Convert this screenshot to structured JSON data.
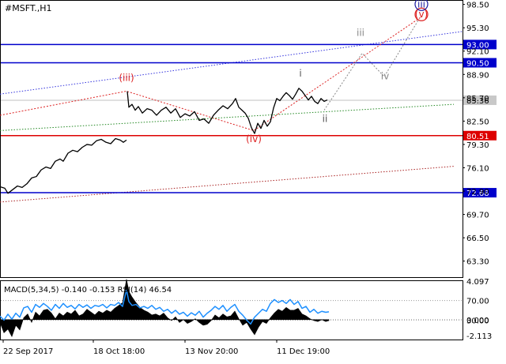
{
  "symbol_label": "#MSFT.,H1",
  "indicator_label": "MACD(5,34,5) -0.140 -0.153 RSI(14) 46.54",
  "chart_data": [
    {
      "type": "line",
      "panel": "price",
      "ylim": [
        61.1,
        99.0
      ],
      "x_range": [
        0,
        574
      ],
      "y_ticks": [
        "98.50",
        "95.30",
        "92.10",
        "88.90",
        "85.70",
        "82.50",
        "79.30",
        "76.10",
        "72.90",
        "69.70",
        "66.50",
        "63.30"
      ],
      "price_labels": [
        {
          "text": "93.00",
          "value": 93.0,
          "color": "#0000cc",
          "style": "line",
          "kind": "level"
        },
        {
          "text": "90.50",
          "value": 90.5,
          "color": "#0000cc",
          "style": "line",
          "kind": "level"
        },
        {
          "text": "85.36",
          "value": 85.36,
          "color": "#c0c0c0",
          "style": "line",
          "kind": "current"
        },
        {
          "text": "80.51",
          "value": 80.51,
          "color": "#dd0000",
          "style": "line",
          "kind": "level"
        },
        {
          "text": "72.68",
          "value": 72.68,
          "color": "#0000cc",
          "style": "line",
          "kind": "level"
        }
      ],
      "x_labels": [
        {
          "text": "22 Sep 2017",
          "x": 4
        },
        {
          "text": "18 Oct 18:00",
          "x": 118
        },
        {
          "text": "13 Nov 20:00",
          "x": 234
        },
        {
          "text": "11 Dec 19:00",
          "x": 350
        }
      ],
      "segments": [
        {
          "name": "segment-1",
          "points": [
            [
              0,
              73.5
            ],
            [
              6,
              73.3
            ],
            [
              10,
              72.6
            ],
            [
              16,
              73.1
            ],
            [
              22,
              73.6
            ],
            [
              28,
              73.4
            ],
            [
              34,
              73.9
            ],
            [
              40,
              74.7
            ],
            [
              46,
              74.9
            ],
            [
              52,
              75.8
            ],
            [
              58,
              76.2
            ],
            [
              64,
              76.0
            ],
            [
              70,
              77.0
            ],
            [
              76,
              77.3
            ],
            [
              80,
              77.0
            ],
            [
              86,
              78.1
            ],
            [
              92,
              78.5
            ],
            [
              98,
              78.3
            ],
            [
              104,
              78.9
            ],
            [
              110,
              79.3
            ],
            [
              116,
              79.2
            ],
            [
              122,
              79.8
            ],
            [
              128,
              80.0
            ],
            [
              134,
              79.6
            ],
            [
              140,
              79.4
            ],
            [
              146,
              80.1
            ],
            [
              152,
              79.9
            ],
            [
              156,
              79.6
            ],
            [
              160,
              79.9
            ]
          ]
        },
        {
          "name": "segment-2",
          "points": [
            [
              161,
              86.6
            ],
            [
              163,
              84.4
            ],
            [
              167,
              84.8
            ],
            [
              171,
              84.0
            ],
            [
              175,
              84.5
            ],
            [
              180,
              83.6
            ],
            [
              186,
              84.2
            ],
            [
              192,
              84.0
            ],
            [
              198,
              83.3
            ],
            [
              204,
              84.0
            ],
            [
              210,
              84.4
            ],
            [
              216,
              83.6
            ],
            [
              222,
              84.2
            ],
            [
              228,
              83.0
            ],
            [
              234,
              83.5
            ],
            [
              240,
              83.2
            ],
            [
              246,
              83.8
            ],
            [
              252,
              82.6
            ],
            [
              258,
              82.8
            ],
            [
              264,
              82.2
            ],
            [
              270,
              83.3
            ],
            [
              276,
              84.0
            ],
            [
              282,
              84.6
            ],
            [
              288,
              84.2
            ],
            [
              294,
              84.9
            ],
            [
              298,
              85.6
            ],
            [
              302,
              84.4
            ],
            [
              306,
              84.0
            ],
            [
              310,
              83.6
            ],
            [
              314,
              82.9
            ],
            [
              318,
              81.6
            ],
            [
              322,
              80.8
            ],
            [
              326,
              82.2
            ],
            [
              330,
              81.5
            ],
            [
              334,
              82.6
            ],
            [
              338,
              81.8
            ],
            [
              342,
              82.4
            ],
            [
              346,
              84.3
            ],
            [
              350,
              85.6
            ],
            [
              354,
              85.3
            ],
            [
              358,
              85.9
            ],
            [
              362,
              86.4
            ],
            [
              366,
              86.0
            ],
            [
              370,
              85.5
            ],
            [
              374,
              86.2
            ],
            [
              378,
              87.0
            ],
            [
              382,
              86.6
            ],
            [
              386,
              86.0
            ],
            [
              390,
              85.4
            ],
            [
              394,
              85.9
            ],
            [
              398,
              85.2
            ],
            [
              402,
              84.9
            ],
            [
              406,
              85.6
            ],
            [
              410,
              85.2
            ],
            [
              414,
              85.4
            ]
          ]
        }
      ],
      "wave_labels": [
        {
          "text": "(iii)",
          "x": 160,
          "y": 88.0,
          "color": "#dd2222"
        },
        {
          "text": "(iv)",
          "x": 321,
          "y": 79.6,
          "color": "#dd2222"
        },
        {
          "text": "(v)",
          "x": 533,
          "y": 96.7,
          "color": "#dd2222",
          "circled": true
        },
        {
          "text": "iii",
          "x": 533,
          "y": 98.1,
          "color": "#1a1aa0",
          "circled": true
        },
        {
          "text": "i",
          "x": 380,
          "y": 88.6,
          "color": "#555555"
        },
        {
          "text": "ii",
          "x": 411,
          "y": 82.4,
          "color": "#555555"
        },
        {
          "text": "iii",
          "x": 456,
          "y": 94.2,
          "color": "#888888"
        },
        {
          "text": "iv",
          "x": 487,
          "y": 88.2,
          "color": "#888888"
        }
      ],
      "wave_paths": [
        {
          "name": "wave-red-path",
          "color": "#dd2222",
          "points": [
            [
              0,
              83.3
            ],
            [
              160,
              86.6
            ],
            [
              321,
              81.2
            ],
            [
              533,
              96.8
            ]
          ]
        },
        {
          "name": "wave-projection-path",
          "color": "#888888",
          "points": [
            [
              410,
              84.0
            ],
            [
              458,
              91.8
            ],
            [
              486,
              88.6
            ],
            [
              530,
              96.5
            ]
          ]
        }
      ],
      "trend_lines": [
        {
          "name": "blue-channel-line",
          "color": "#3333dd",
          "points": [
            [
              0,
              86.2
            ],
            [
              640,
              95.6
            ]
          ]
        },
        {
          "name": "green-channel-line",
          "color": "#228822",
          "points": [
            [
              0,
              81.2
            ],
            [
              574,
              84.8
            ]
          ]
        },
        {
          "name": "darkred-channel-line",
          "color": "#aa2222",
          "points": [
            [
              0,
              71.4
            ],
            [
              574,
              76.3
            ]
          ]
        }
      ]
    },
    {
      "type": "line",
      "panel": "indicator",
      "right_labels": [
        "4.097",
        "70.00",
        "0.000",
        "30.00",
        "-2.113"
      ],
      "macd_area": [
        [
          0,
          -0.3
        ],
        [
          5,
          -1.4
        ],
        [
          10,
          -1.0
        ],
        [
          15,
          -1.8
        ],
        [
          20,
          -0.6
        ],
        [
          25,
          -1.1
        ],
        [
          30,
          0.2
        ],
        [
          35,
          0.6
        ],
        [
          40,
          -0.3
        ],
        [
          45,
          0.8
        ],
        [
          50,
          0.4
        ],
        [
          55,
          1.0
        ],
        [
          60,
          1.1
        ],
        [
          65,
          0.7
        ],
        [
          70,
          0.1
        ],
        [
          75,
          0.7
        ],
        [
          80,
          0.4
        ],
        [
          85,
          0.8
        ],
        [
          90,
          0.6
        ],
        [
          95,
          1.0
        ],
        [
          100,
          0.4
        ],
        [
          105,
          0.6
        ],
        [
          110,
          1.1
        ],
        [
          115,
          0.8
        ],
        [
          120,
          0.5
        ],
        [
          125,
          0.9
        ],
        [
          130,
          0.7
        ],
        [
          135,
          1.0
        ],
        [
          140,
          0.8
        ],
        [
          145,
          1.2
        ],
        [
          150,
          1.5
        ],
        [
          155,
          1.8
        ],
        [
          160,
          4.3
        ],
        [
          163,
          3.0
        ],
        [
          167,
          2.4
        ],
        [
          172,
          1.8
        ],
        [
          177,
          1.3
        ],
        [
          182,
          1.0
        ],
        [
          187,
          0.8
        ],
        [
          192,
          0.5
        ],
        [
          197,
          0.6
        ],
        [
          202,
          0.4
        ],
        [
          207,
          0.7
        ],
        [
          212,
          0.2
        ],
        [
          217,
          -0.1
        ],
        [
          222,
          0.3
        ],
        [
          227,
          -0.3
        ],
        [
          232,
          0.0
        ],
        [
          237,
          -0.4
        ],
        [
          242,
          -0.2
        ],
        [
          247,
          0.1
        ],
        [
          252,
          -0.3
        ],
        [
          257,
          -0.6
        ],
        [
          262,
          -0.5
        ],
        [
          267,
          -0.1
        ],
        [
          272,
          0.5
        ],
        [
          277,
          0.2
        ],
        [
          282,
          0.6
        ],
        [
          287,
          0.3
        ],
        [
          292,
          0.4
        ],
        [
          297,
          0.9
        ],
        [
          302,
          0.1
        ],
        [
          307,
          -0.6
        ],
        [
          312,
          -0.3
        ],
        [
          317,
          -1.0
        ],
        [
          322,
          -1.6
        ],
        [
          327,
          -0.8
        ],
        [
          332,
          -0.2
        ],
        [
          337,
          -0.4
        ],
        [
          342,
          0.2
        ],
        [
          347,
          0.7
        ],
        [
          352,
          1.1
        ],
        [
          357,
          0.9
        ],
        [
          362,
          1.3
        ],
        [
          367,
          1.0
        ],
        [
          372,
          1.0
        ],
        [
          377,
          1.2
        ],
        [
          382,
          0.6
        ],
        [
          387,
          0.4
        ],
        [
          392,
          0.1
        ],
        [
          397,
          -0.1
        ],
        [
          402,
          -0.2
        ],
        [
          407,
          0.0
        ],
        [
          412,
          -0.2
        ],
        [
          416,
          -0.1
        ]
      ],
      "rsi_line": [
        [
          0,
          38
        ],
        [
          5,
          30
        ],
        [
          10,
          42
        ],
        [
          15,
          32
        ],
        [
          20,
          44
        ],
        [
          25,
          36
        ],
        [
          30,
          55
        ],
        [
          35,
          58
        ],
        [
          40,
          46
        ],
        [
          45,
          62
        ],
        [
          50,
          56
        ],
        [
          55,
          64
        ],
        [
          60,
          58
        ],
        [
          65,
          50
        ],
        [
          70,
          62
        ],
        [
          75,
          54
        ],
        [
          80,
          64
        ],
        [
          85,
          56
        ],
        [
          90,
          60
        ],
        [
          95,
          53
        ],
        [
          100,
          62
        ],
        [
          105,
          56
        ],
        [
          110,
          61
        ],
        [
          115,
          54
        ],
        [
          120,
          60
        ],
        [
          125,
          58
        ],
        [
          130,
          62
        ],
        [
          135,
          55
        ],
        [
          140,
          62
        ],
        [
          145,
          60
        ],
        [
          150,
          66
        ],
        [
          155,
          58
        ],
        [
          160,
          92
        ],
        [
          163,
          68
        ],
        [
          167,
          60
        ],
        [
          172,
          62
        ],
        [
          177,
          55
        ],
        [
          182,
          58
        ],
        [
          187,
          54
        ],
        [
          192,
          60
        ],
        [
          197,
          52
        ],
        [
          202,
          56
        ],
        [
          207,
          48
        ],
        [
          212,
          52
        ],
        [
          217,
          44
        ],
        [
          222,
          50
        ],
        [
          227,
          42
        ],
        [
          232,
          46
        ],
        [
          237,
          38
        ],
        [
          242,
          45
        ],
        [
          247,
          40
        ],
        [
          252,
          48
        ],
        [
          257,
          36
        ],
        [
          262,
          44
        ],
        [
          267,
          50
        ],
        [
          272,
          58
        ],
        [
          277,
          52
        ],
        [
          282,
          60
        ],
        [
          287,
          48
        ],
        [
          292,
          56
        ],
        [
          297,
          62
        ],
        [
          302,
          48
        ],
        [
          307,
          40
        ],
        [
          312,
          30
        ],
        [
          317,
          22
        ],
        [
          322,
          36
        ],
        [
          327,
          44
        ],
        [
          332,
          52
        ],
        [
          337,
          48
        ],
        [
          342,
          64
        ],
        [
          347,
          72
        ],
        [
          352,
          66
        ],
        [
          357,
          70
        ],
        [
          362,
          64
        ],
        [
          367,
          72
        ],
        [
          372,
          62
        ],
        [
          377,
          68
        ],
        [
          382,
          54
        ],
        [
          387,
          58
        ],
        [
          392,
          46
        ],
        [
          397,
          52
        ],
        [
          402,
          44
        ],
        [
          407,
          48
        ],
        [
          412,
          46
        ],
        [
          416,
          47
        ]
      ]
    }
  ]
}
